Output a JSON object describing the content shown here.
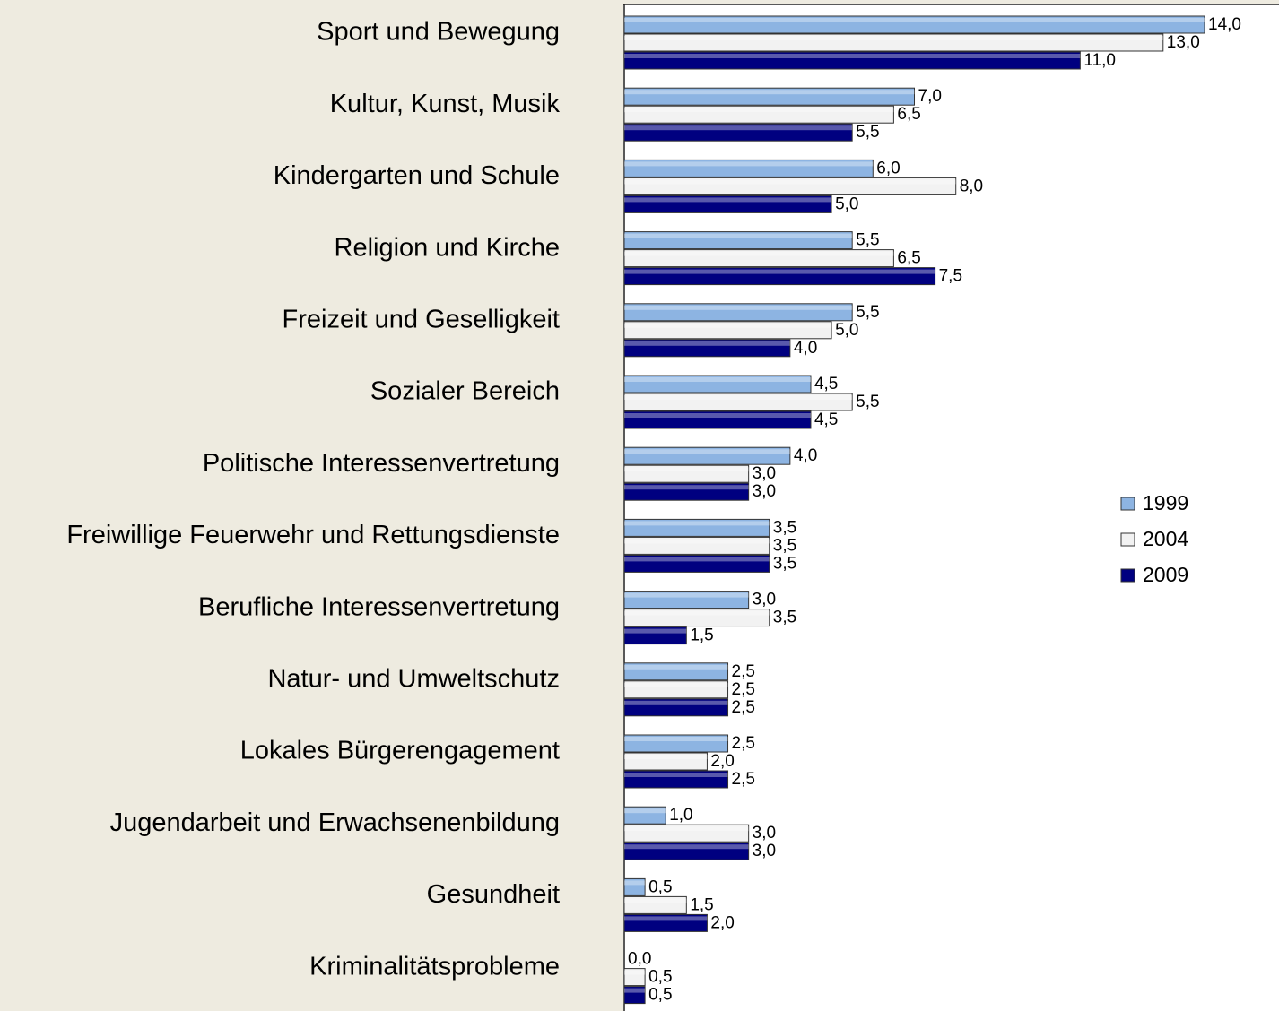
{
  "chart_data": {
    "type": "barh",
    "categories": [
      "Sport und Bewegung",
      "Kultur, Kunst, Musik",
      "Kindergarten und Schule",
      "Religion und Kirche",
      "Freizeit und Geselligkeit",
      "Sozialer Bereich",
      "Politische Interessenvertretung",
      "Freiwillige Feuerwehr und Rettungsdienste",
      "Berufliche Interessenvertretung",
      "Natur- und Umweltschutz",
      "Lokales Bürgerengagement",
      "Jugendarbeit und Erwachsenenbildung",
      "Gesundheit",
      "Kriminalitätsprobleme"
    ],
    "series": [
      {
        "name": "1999",
        "color": "#8db4e2",
        "values": [
          14,
          7,
          6,
          5.5,
          5.5,
          4.5,
          4,
          3.5,
          3,
          2.5,
          2.5,
          1,
          0.5,
          0
        ],
        "value_labels": [
          "14,0",
          "7,0",
          "6,0",
          "5,5",
          "5,5",
          "4,5",
          "4,0",
          "3,5",
          "3,0",
          "2,5",
          "2,5",
          "1,0",
          "0,5",
          "0,0"
        ]
      },
      {
        "name": "2004",
        "color": "#f2f2f2",
        "values": [
          13,
          6.5,
          8,
          6.5,
          5,
          5.5,
          3,
          3.5,
          3.5,
          2.5,
          2,
          3,
          1.5,
          0.5
        ],
        "value_labels": [
          "13,0",
          "6,5",
          "8,0",
          "6,5",
          "5,0",
          "5,5",
          "3,0",
          "3,5",
          "3,5",
          "2,5",
          "2,0",
          "3,0",
          "1,5",
          "0,5"
        ]
      },
      {
        "name": "2009",
        "color": "#000080",
        "values": [
          11,
          5.5,
          5,
          7.5,
          4,
          4.5,
          3,
          3.5,
          1.5,
          2.5,
          2.5,
          3,
          2,
          0.5
        ],
        "value_labels": [
          "11,0",
          "5,5",
          "5,0",
          "7,5",
          "4,0",
          "4,5",
          "3,0",
          "3,5",
          "1,5",
          "2,5",
          "2,5",
          "3,0",
          "2,0",
          "0,5"
        ]
      }
    ],
    "xlim": [
      0,
      14
    ],
    "legend": "right"
  }
}
